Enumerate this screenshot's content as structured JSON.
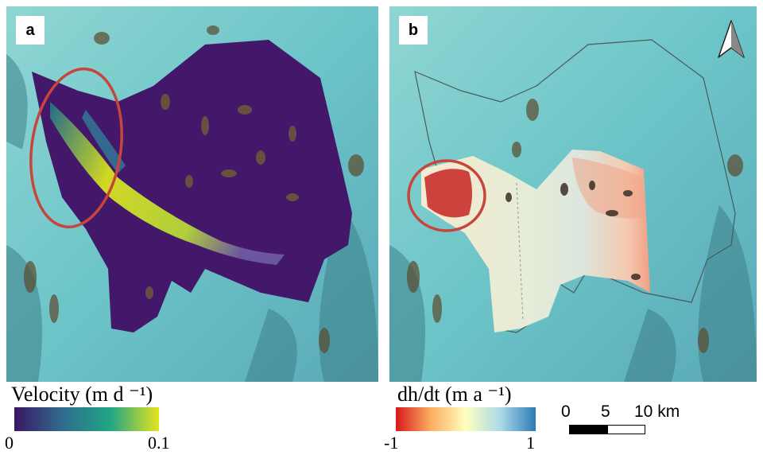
{
  "panels": {
    "a": {
      "label": "a"
    },
    "b": {
      "label": "b"
    }
  },
  "legend_velocity": {
    "title": "Velocity (m d ⁻¹)",
    "min_label": "0",
    "max_label": "0.1",
    "colors": [
      "#3b1663",
      "#2f6c8e",
      "#21a685",
      "#e6e41c"
    ]
  },
  "legend_dhdt": {
    "title": "dh/dt (m a ⁻¹)",
    "min_label": "-1",
    "max_label": "1",
    "colors": [
      "#d7191c",
      "#fdae61",
      "#ffffbf",
      "#abd9e9",
      "#2c7bb6"
    ]
  },
  "scale_bar": {
    "labels": [
      "0",
      "5",
      "10 km"
    ]
  },
  "icons": {
    "north_arrow": "north-arrow-icon",
    "highlight": "highlight-ellipse"
  }
}
